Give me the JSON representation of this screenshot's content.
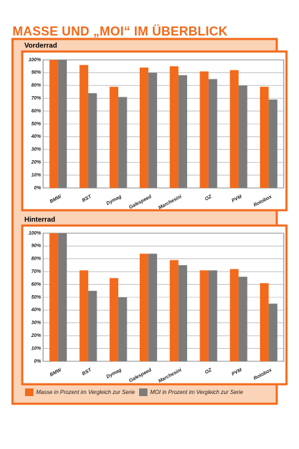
{
  "title": "MASSE UND „MOI“ IM ÜBERBLICK",
  "chart_data": [
    {
      "type": "bar",
      "title": "Vorderrad",
      "categories": [
        "BMW",
        "BST",
        "Dymag",
        "Galespeed",
        "Marchesini",
        "OZ",
        "PVM",
        "Rotobox"
      ],
      "series": [
        {
          "name": "Masse in Prozent im Vergleich zur Serie",
          "color": "#f26a1b",
          "values": [
            100,
            96,
            79,
            94,
            95,
            91,
            92,
            79
          ]
        },
        {
          "name": "MOI in Prozent im Vergleich zur Serie",
          "color": "#7b7b7b",
          "values": [
            100,
            74,
            71,
            90,
            88,
            85,
            80,
            69
          ]
        }
      ],
      "ylim": [
        0,
        100
      ],
      "yticks": [
        {
          "value": 0,
          "label": "0%"
        },
        {
          "value": 10,
          "label": "10%"
        },
        {
          "value": 20,
          "label": "20%"
        },
        {
          "value": 30,
          "label": "30%"
        },
        {
          "value": 40,
          "label": "40%"
        },
        {
          "value": 50,
          "label": "50%"
        },
        {
          "value": 60,
          "label": "60%"
        },
        {
          "value": 70,
          "label": "70%"
        },
        {
          "value": 80,
          "label": "80%"
        },
        {
          "value": 90,
          "label": "90%"
        },
        {
          "value": 100,
          "label": "100%"
        }
      ],
      "grid": true
    },
    {
      "type": "bar",
      "title": "Hinterrad",
      "categories": [
        "BMW",
        "BST",
        "Dymag",
        "Galespeed",
        "Marchesini",
        "OZ",
        "PVM",
        "Rotobox"
      ],
      "series": [
        {
          "name": "Masse in Prozent im Vergleich zur Serie",
          "color": "#f26a1b",
          "values": [
            100,
            71,
            65,
            84,
            79,
            71,
            72,
            61
          ]
        },
        {
          "name": "MOI in Prozent im Vergleich zur Serie",
          "color": "#7b7b7b",
          "values": [
            100,
            55,
            50,
            84,
            75,
            71,
            66,
            45
          ]
        }
      ],
      "ylim": [
        0,
        100
      ],
      "yticks": [
        {
          "value": 0,
          "label": "0%"
        },
        {
          "value": 10,
          "label": "10%"
        },
        {
          "value": 20,
          "label": "20%"
        },
        {
          "value": 30,
          "label": "30%"
        },
        {
          "value": 40,
          "label": "40%"
        },
        {
          "value": 50,
          "label": "50%"
        },
        {
          "value": 60,
          "label": "60%"
        },
        {
          "value": 70,
          "label": "70%"
        },
        {
          "value": 80,
          "label": "80%"
        },
        {
          "value": 90,
          "label": "90%"
        },
        {
          "value": 100,
          "label": "100%"
        }
      ],
      "grid": true
    }
  ]
}
